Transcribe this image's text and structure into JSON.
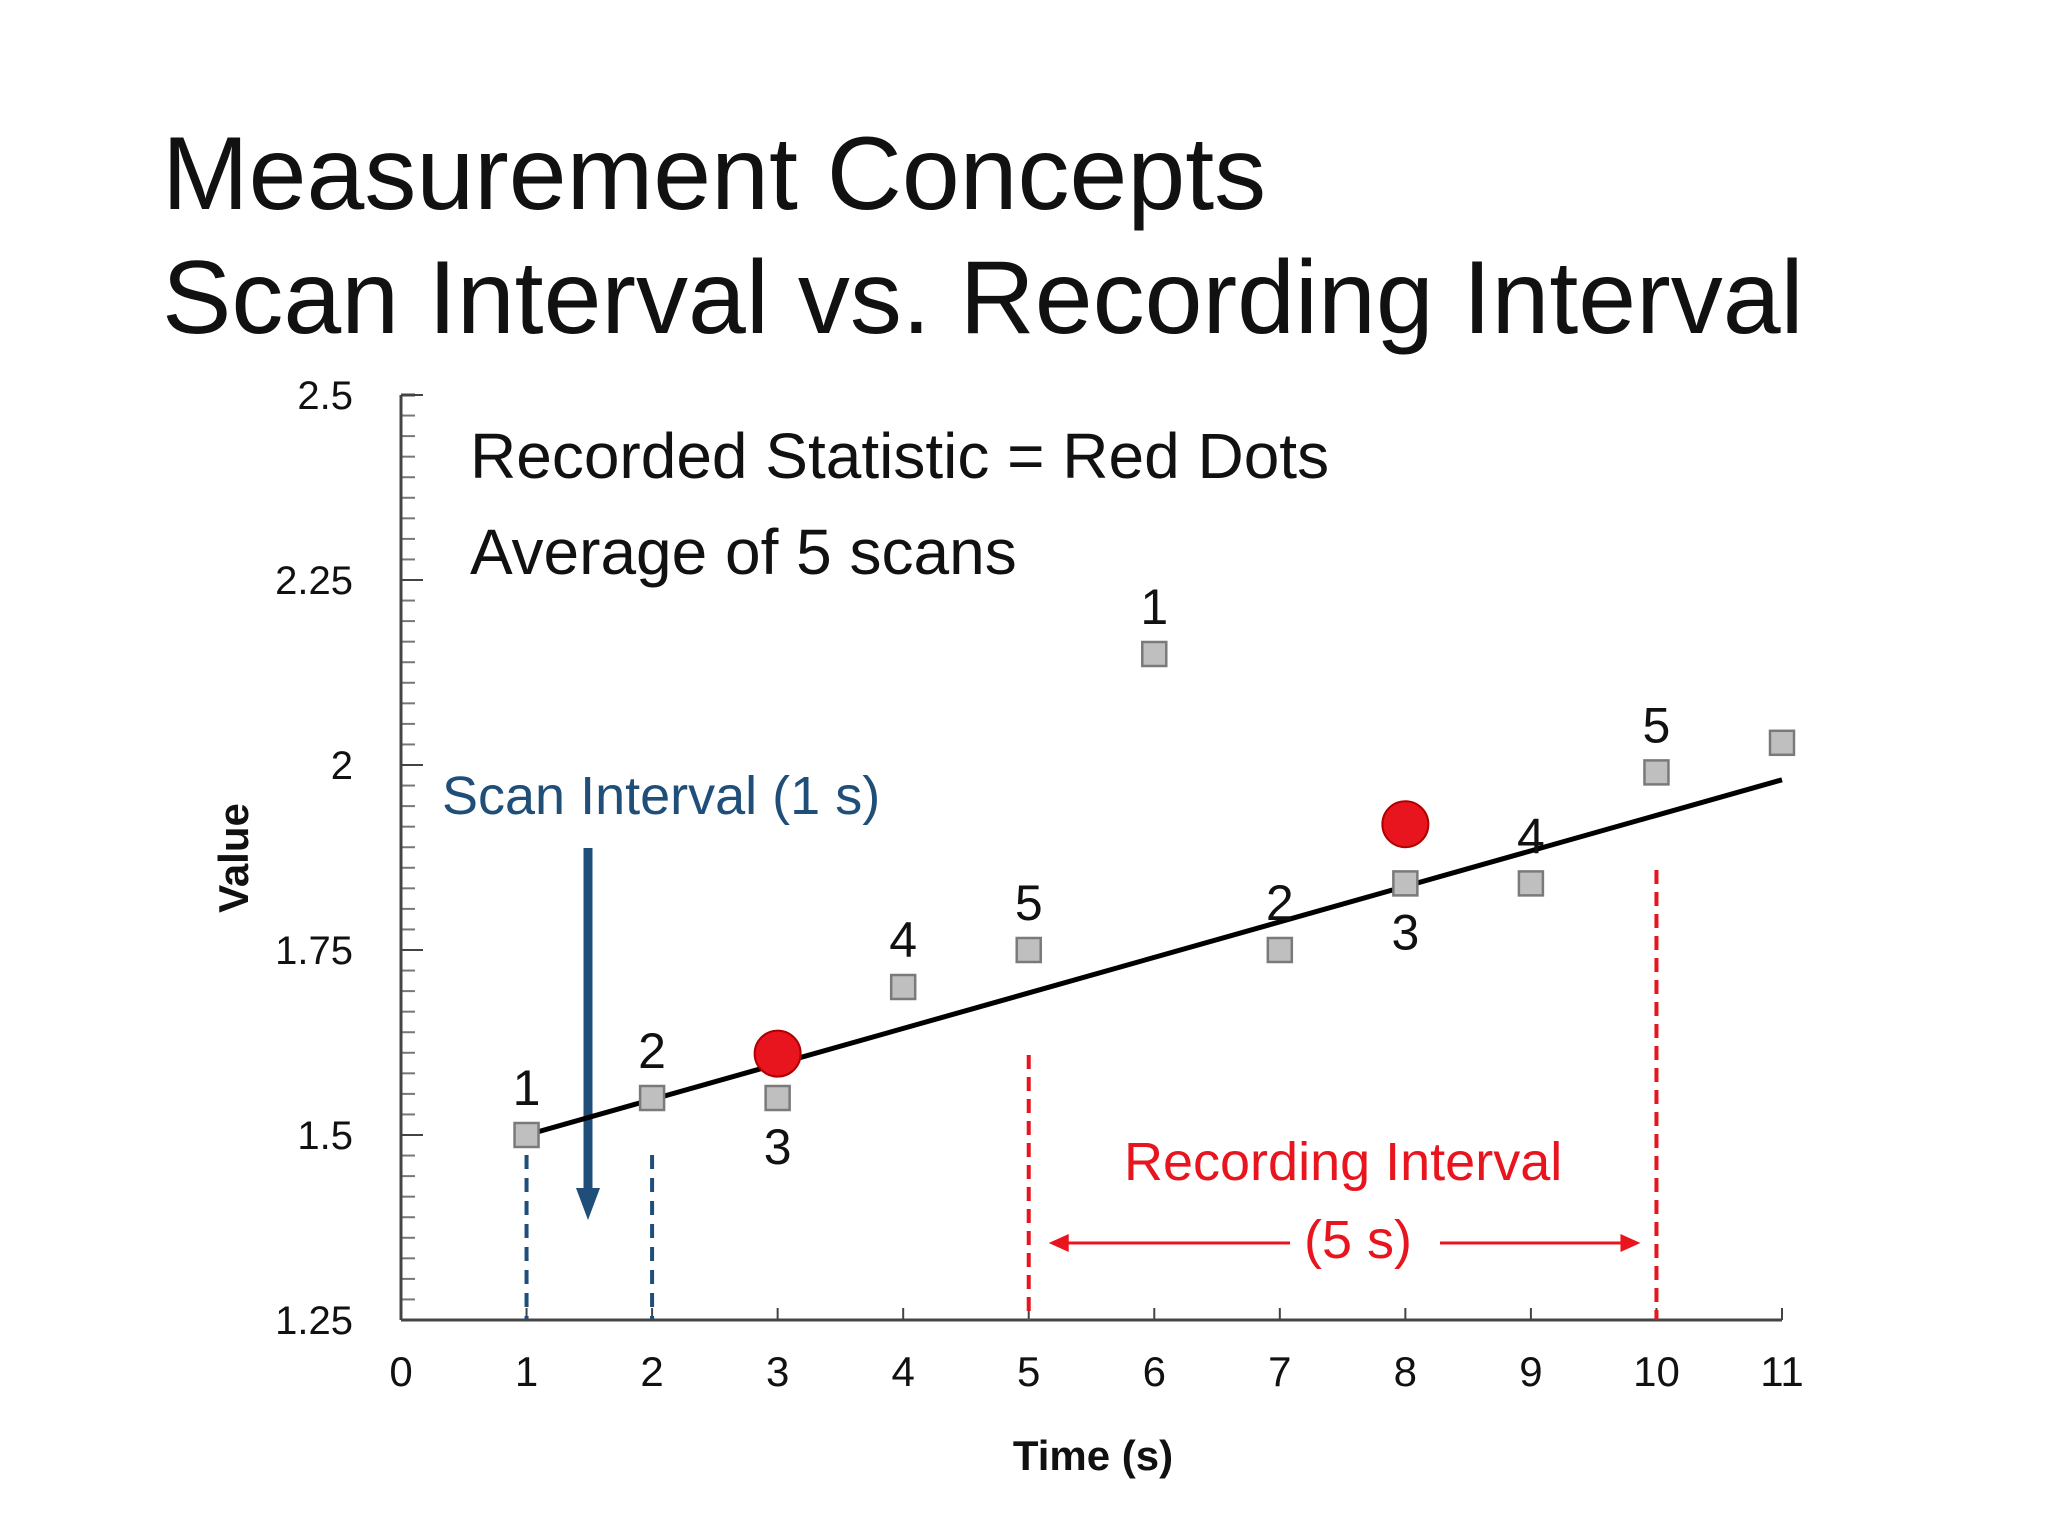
{
  "slide": {
    "title_line1": "Measurement Concepts",
    "title_line2": "Scan Interval vs. Recording Interval"
  },
  "chart_data": {
    "type": "scatter",
    "xlabel": "Time (s)",
    "ylabel": "Value",
    "xlim": [
      0,
      11
    ],
    "ylim": [
      1.25,
      2.5
    ],
    "x_ticks": [
      "0",
      "1",
      "2",
      "3",
      "4",
      "5",
      "6",
      "7",
      "8",
      "9",
      "10",
      "11"
    ],
    "y_ticks": [
      "1.25",
      "1.5",
      "1.75",
      "2",
      "2.25",
      "2.5"
    ],
    "scans": [
      {
        "x": 1,
        "y": 1.5,
        "label": "1"
      },
      {
        "x": 2,
        "y": 1.55,
        "label": "2"
      },
      {
        "x": 3,
        "y": 1.55,
        "label": "3"
      },
      {
        "x": 4,
        "y": 1.7,
        "label": "4"
      },
      {
        "x": 5,
        "y": 1.75,
        "label": "5"
      },
      {
        "x": 6,
        "y": 2.15,
        "label": "1"
      },
      {
        "x": 7,
        "y": 1.75,
        "label": "2"
      },
      {
        "x": 8,
        "y": 1.84,
        "label": "3"
      },
      {
        "x": 9,
        "y": 1.84,
        "label": "4"
      },
      {
        "x": 10,
        "y": 1.99,
        "label": "5"
      },
      {
        "x": 11,
        "y": 2.03,
        "label": ""
      }
    ],
    "recorded_points": [
      {
        "x": 3,
        "y": 1.61
      },
      {
        "x": 8,
        "y": 1.92
      }
    ],
    "trend_line": {
      "x": [
        1,
        11
      ],
      "y": [
        1.5,
        1.98
      ]
    },
    "annotations": {
      "recorded_statistic": "Recorded Statistic = Red Dots",
      "average": "Average of 5 scans",
      "scan_interval": "Scan Interval (1 s)",
      "recording_interval": "Recording Interval",
      "recording_interval_value": "(5 s)"
    },
    "scan_interval_markers_x": [
      1,
      2
    ],
    "recording_interval_markers_x": [
      5,
      10
    ],
    "colors": {
      "scan_marker_fill": "#bfbfbf",
      "scan_marker_stroke": "#7a7a7a",
      "recorded_dot": "#e8141e",
      "trend_line": "#000000",
      "scan_interval": "#1f4e79",
      "recording_interval": "#e8141e",
      "axis": "#444444",
      "text": "#111111"
    }
  }
}
